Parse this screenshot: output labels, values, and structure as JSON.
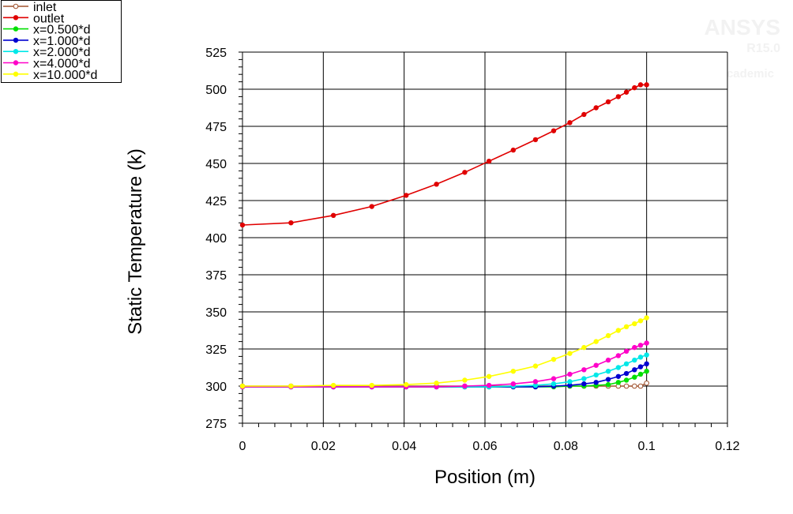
{
  "watermark": {
    "brand": "ANSYS",
    "version": "R15.0",
    "edition": "Academic"
  },
  "chart_data": {
    "type": "line",
    "xlabel": "Position (m)",
    "ylabel": "Static Temperature (k)",
    "xlim": [
      0,
      0.12
    ],
    "ylim": [
      275,
      525
    ],
    "xticks": [
      0,
      0.02,
      0.04,
      0.06,
      0.08,
      0.1,
      0.12
    ],
    "xtick_labels": [
      "0",
      "0.02",
      "0.04",
      "0.06",
      "0.08",
      "0.1",
      "0.12"
    ],
    "yticks": [
      275,
      300,
      325,
      350,
      375,
      400,
      425,
      450,
      475,
      500,
      525
    ],
    "ytick_labels": [
      "275",
      "300",
      "325",
      "350",
      "375",
      "400",
      "425",
      "450",
      "475",
      "500",
      "525"
    ],
    "grid": true,
    "legend_position": "top-left",
    "series": [
      {
        "name": "inlet",
        "color": "#a0522d",
        "marker": "hollow-circle",
        "x": [
          0,
          0.012,
          0.0225,
          0.032,
          0.0405,
          0.048,
          0.055,
          0.061,
          0.067,
          0.0725,
          0.077,
          0.081,
          0.0845,
          0.0875,
          0.0905,
          0.093,
          0.095,
          0.097,
          0.0985,
          0.1
        ],
        "y": [
          300,
          300,
          300,
          300,
          300,
          300,
          300,
          300,
          300,
          300,
          300,
          300,
          300,
          300,
          300,
          300,
          300,
          300,
          300,
          302
        ]
      },
      {
        "name": "outlet",
        "color": "#e00000",
        "marker": "filled-circle",
        "x": [
          0,
          0.012,
          0.0225,
          0.032,
          0.0405,
          0.048,
          0.055,
          0.061,
          0.067,
          0.0725,
          0.077,
          0.081,
          0.0845,
          0.0875,
          0.0905,
          0.093,
          0.095,
          0.097,
          0.0985,
          0.1
        ],
        "y": [
          408.5,
          410,
          415,
          421,
          428.5,
          436,
          444,
          451.5,
          459,
          466,
          472,
          477.5,
          483,
          487.5,
          491.5,
          495,
          498,
          501,
          503,
          503
        ]
      },
      {
        "name": "x=0.500*d",
        "color": "#00e000",
        "marker": "filled-circle",
        "x": [
          0,
          0.012,
          0.0225,
          0.032,
          0.0405,
          0.048,
          0.055,
          0.061,
          0.067,
          0.0725,
          0.077,
          0.081,
          0.0845,
          0.0875,
          0.0905,
          0.093,
          0.095,
          0.097,
          0.0985,
          0.1
        ],
        "y": [
          299.5,
          299.5,
          299.5,
          299.5,
          299.5,
          299.5,
          299.5,
          299.5,
          299.5,
          299.5,
          299.5,
          300,
          300,
          300.5,
          301,
          302.5,
          304,
          306,
          308,
          310
        ]
      },
      {
        "name": "x=1.000*d",
        "color": "#0000d0",
        "marker": "filled-circle",
        "x": [
          0,
          0.012,
          0.0225,
          0.032,
          0.0405,
          0.048,
          0.055,
          0.061,
          0.067,
          0.0725,
          0.077,
          0.081,
          0.0845,
          0.0875,
          0.0905,
          0.093,
          0.095,
          0.097,
          0.0985,
          0.1
        ],
        "y": [
          299.5,
          299.5,
          299.5,
          299.5,
          299.5,
          299.5,
          299.5,
          299.5,
          299.5,
          299.5,
          300,
          300.5,
          301.5,
          302.5,
          304.5,
          306.5,
          308.5,
          311,
          313,
          315
        ]
      },
      {
        "name": "x=2.000*d",
        "color": "#00e8e8",
        "marker": "filled-circle",
        "x": [
          0,
          0.012,
          0.0225,
          0.032,
          0.0405,
          0.048,
          0.055,
          0.061,
          0.067,
          0.0725,
          0.077,
          0.081,
          0.0845,
          0.0875,
          0.0905,
          0.093,
          0.095,
          0.097,
          0.0985,
          0.1
        ],
        "y": [
          299.5,
          299.5,
          299.5,
          299.5,
          299.5,
          299.5,
          299.5,
          299.5,
          300,
          300.5,
          301.5,
          303,
          305,
          307.5,
          310,
          312.5,
          315,
          317.5,
          319.5,
          321
        ]
      },
      {
        "name": "x=4.000*d",
        "color": "#ff00c8",
        "marker": "filled-circle",
        "x": [
          0,
          0.012,
          0.0225,
          0.032,
          0.0405,
          0.048,
          0.055,
          0.061,
          0.067,
          0.0725,
          0.077,
          0.081,
          0.0845,
          0.0875,
          0.0905,
          0.093,
          0.095,
          0.097,
          0.0985,
          0.1
        ],
        "y": [
          299.5,
          299.5,
          299.5,
          299.5,
          299.5,
          299.5,
          300,
          300.5,
          301.5,
          303,
          305,
          308,
          311,
          314,
          317.5,
          320.5,
          323.5,
          326,
          327.5,
          329
        ]
      },
      {
        "name": "x=10.000*d",
        "color": "#ffff00",
        "marker": "filled-circle",
        "x": [
          0,
          0.012,
          0.0225,
          0.032,
          0.0405,
          0.048,
          0.055,
          0.061,
          0.067,
          0.0725,
          0.077,
          0.081,
          0.0845,
          0.0875,
          0.0905,
          0.093,
          0.095,
          0.097,
          0.0985,
          0.1
        ],
        "y": [
          300,
          300,
          300.5,
          300.5,
          301,
          302,
          304,
          306.5,
          310,
          313.5,
          318,
          322,
          326,
          330,
          334,
          337.5,
          340,
          342,
          344,
          346
        ]
      }
    ]
  }
}
